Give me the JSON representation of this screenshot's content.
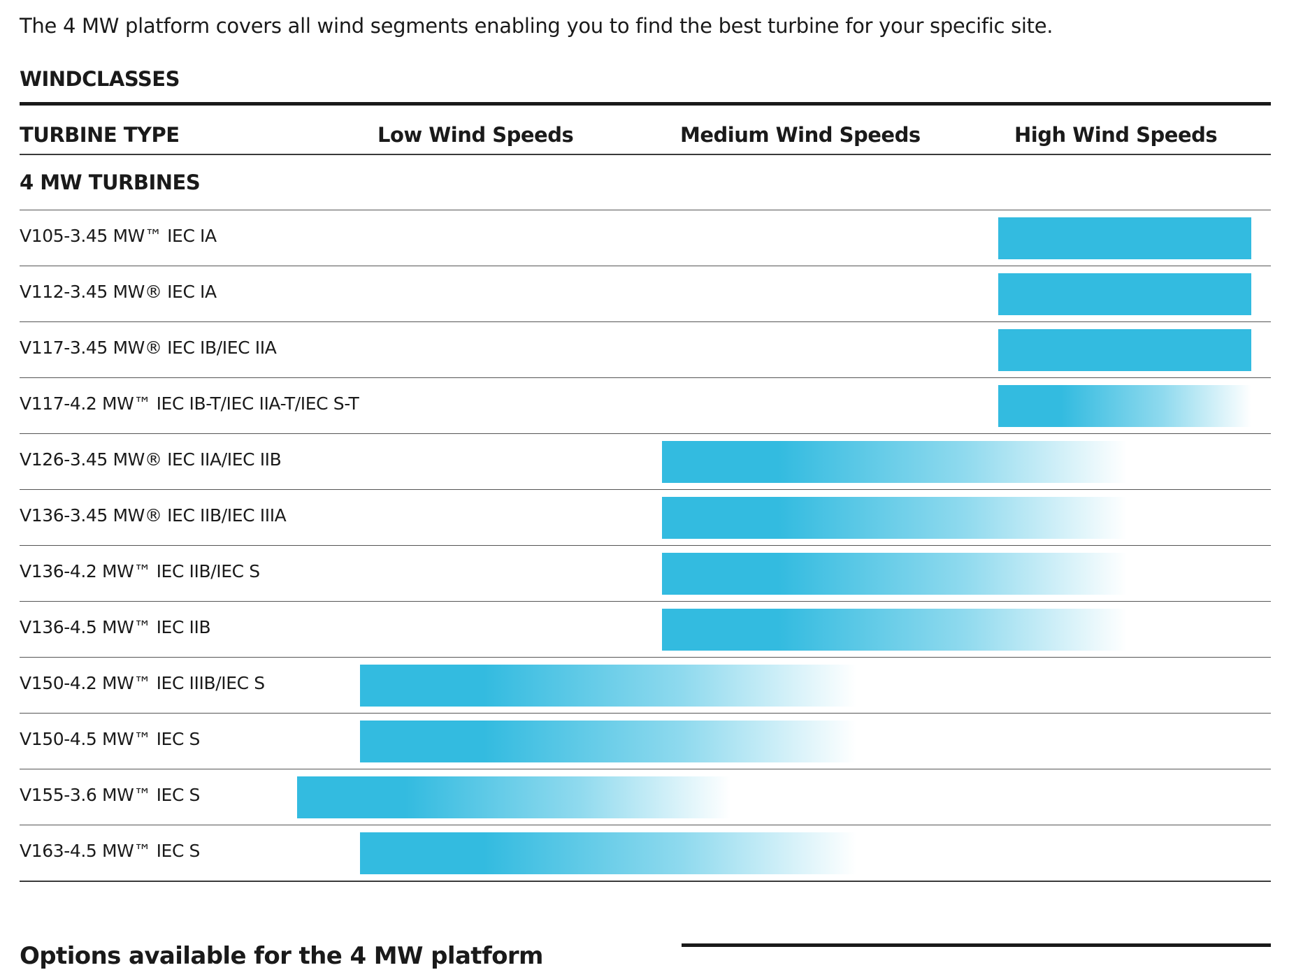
{
  "intro_text": "The 4 MW platform covers all wind segments enabling you to find the best turbine for your specific site.",
  "section_title": "WINDCLASSES",
  "columns": {
    "turbine_type": "TURBINE TYPE",
    "low": "Low Wind Speeds",
    "medium": "Medium Wind Speeds",
    "high": "High Wind Speeds"
  },
  "group_title": "4 MW TURBINES",
  "colors": {
    "bar": "#33bbe0",
    "rule": "#1a1a1a"
  },
  "turbines": [
    {
      "label": "V105-3.45 MW™ IEC IA"
    },
    {
      "label": "V112-3.45 MW® IEC IA"
    },
    {
      "label": "V117-3.45 MW® IEC IB/IEC IIA"
    },
    {
      "label": "V117-4.2 MW™ IEC IB-T/IEC IIA-T/IEC S-T"
    },
    {
      "label": "V126-3.45 MW® IEC IIA/IEC IIB"
    },
    {
      "label": "V136-3.45 MW® IEC IIB/IEC IIIA"
    },
    {
      "label": "V136-4.2 MW™ IEC IIB/IEC S"
    },
    {
      "label": "V136-4.5 MW™ IEC IIB"
    },
    {
      "label": "V150-4.2 MW™ IEC IIIB/IEC S"
    },
    {
      "label": "V150-4.5 MW™ IEC S"
    },
    {
      "label": "V155-3.6 MW™ IEC S"
    },
    {
      "label": "V163-4.5 MW™ IEC S"
    }
  ],
  "bottom_title": "Options available for the 4 MW platform"
}
